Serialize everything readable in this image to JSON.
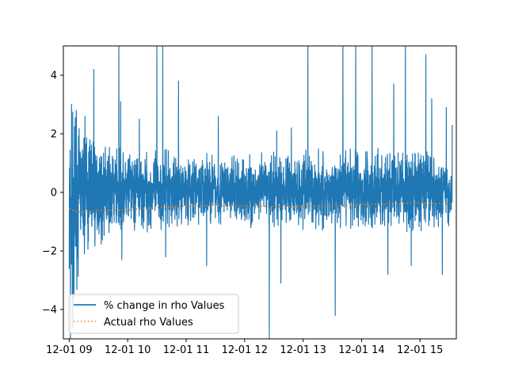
{
  "chart_data": {
    "type": "line",
    "title": "",
    "xlabel": "",
    "ylabel": "",
    "xlim": [
      8.9,
      15.62
    ],
    "ylim": [
      -5,
      5
    ],
    "x_ticks": [
      9,
      10,
      11,
      12,
      13,
      14,
      15
    ],
    "x_tick_labels": [
      "12-01 09",
      "12-01 10",
      "12-01 11",
      "12-01 12",
      "12-01 13",
      "12-01 14",
      "12-01 15"
    ],
    "y_ticks": [
      -4,
      -2,
      0,
      2,
      4
    ],
    "y_tick_labels": [
      "−4",
      "−2",
      "0",
      "2",
      "4"
    ],
    "grid": false,
    "legend_position": "lower-left",
    "series": [
      {
        "name": "% change in rho Values",
        "color": "#1f77b4",
        "style": "solid",
        "x_range": [
          9.0,
          15.55
        ],
        "approx_envelope": [
          {
            "x": 9.05,
            "low": -4.9,
            "high": 3.0
          },
          {
            "x": 9.2,
            "low": -2.3,
            "high": 2.5
          },
          {
            "x": 9.5,
            "low": -1.8,
            "high": 1.6
          },
          {
            "x": 10.0,
            "low": -1.5,
            "high": 1.6
          },
          {
            "x": 11.0,
            "low": -1.2,
            "high": 1.4
          },
          {
            "x": 12.0,
            "low": -1.2,
            "high": 1.3
          },
          {
            "x": 13.0,
            "low": -1.3,
            "high": 1.5
          },
          {
            "x": 14.0,
            "low": -1.3,
            "high": 1.5
          },
          {
            "x": 15.0,
            "low": -1.5,
            "high": 1.7
          },
          {
            "x": 15.5,
            "low": -1.2,
            "high": 1.2
          }
        ],
        "spikes": [
          {
            "x": 9.02,
            "y": -5.0
          },
          {
            "x": 9.04,
            "y": 3.0
          },
          {
            "x": 9.08,
            "y": -3.6
          },
          {
            "x": 9.12,
            "y": 2.8
          },
          {
            "x": 9.27,
            "y": 2.6
          },
          {
            "x": 9.42,
            "y": 4.2
          },
          {
            "x": 9.85,
            "y": 5.0
          },
          {
            "x": 9.88,
            "y": 3.1
          },
          {
            "x": 9.9,
            "y": -2.3
          },
          {
            "x": 10.2,
            "y": 2.5
          },
          {
            "x": 10.5,
            "y": 5.0
          },
          {
            "x": 10.6,
            "y": 5.0
          },
          {
            "x": 10.65,
            "y": -2.2
          },
          {
            "x": 10.87,
            "y": 3.8
          },
          {
            "x": 11.35,
            "y": -2.5
          },
          {
            "x": 11.55,
            "y": 2.6
          },
          {
            "x": 12.42,
            "y": -5.0
          },
          {
            "x": 12.62,
            "y": -3.1
          },
          {
            "x": 12.55,
            "y": 2.1
          },
          {
            "x": 12.8,
            "y": 2.2
          },
          {
            "x": 13.08,
            "y": 5.0
          },
          {
            "x": 13.55,
            "y": -4.2
          },
          {
            "x": 13.68,
            "y": 5.0
          },
          {
            "x": 13.9,
            "y": 5.0
          },
          {
            "x": 14.18,
            "y": 5.0
          },
          {
            "x": 14.45,
            "y": -2.8
          },
          {
            "x": 14.55,
            "y": 3.7
          },
          {
            "x": 14.75,
            "y": 5.0
          },
          {
            "x": 14.85,
            "y": -2.5
          },
          {
            "x": 15.1,
            "y": 4.7
          },
          {
            "x": 15.2,
            "y": 3.2
          },
          {
            "x": 15.45,
            "y": 2.9
          },
          {
            "x": 15.38,
            "y": -2.8
          },
          {
            "x": 15.55,
            "y": 2.3
          }
        ]
      },
      {
        "name": "Actual rho Values",
        "color": "#ff7f0e",
        "style": "dotted",
        "points": [
          {
            "x": 9.0,
            "y": -0.55
          },
          {
            "x": 9.1,
            "y": -0.65
          },
          {
            "x": 9.2,
            "y": -0.67
          },
          {
            "x": 9.5,
            "y": -0.62
          },
          {
            "x": 10.0,
            "y": -0.6
          },
          {
            "x": 10.5,
            "y": -0.52
          },
          {
            "x": 11.0,
            "y": -0.47
          },
          {
            "x": 11.5,
            "y": -0.46
          },
          {
            "x": 12.0,
            "y": -0.45
          },
          {
            "x": 12.3,
            "y": -0.47
          },
          {
            "x": 12.6,
            "y": -0.5
          },
          {
            "x": 13.0,
            "y": -0.48
          },
          {
            "x": 13.5,
            "y": -0.45
          },
          {
            "x": 14.0,
            "y": -0.42
          },
          {
            "x": 14.5,
            "y": -0.38
          },
          {
            "x": 15.0,
            "y": -0.36
          },
          {
            "x": 15.3,
            "y": -0.38
          },
          {
            "x": 15.55,
            "y": -0.42
          }
        ]
      }
    ]
  }
}
